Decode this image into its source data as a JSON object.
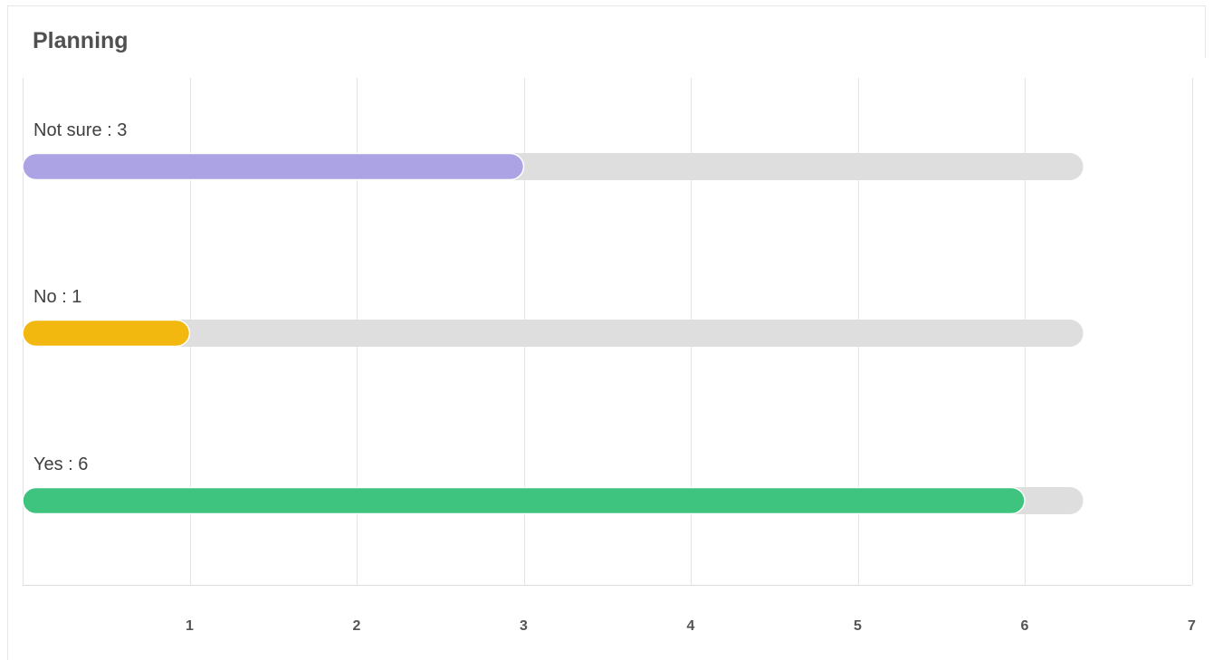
{
  "card": {
    "title": "Planning"
  },
  "chart_data": {
    "type": "bar",
    "orientation": "horizontal",
    "title": "Planning",
    "categories": [
      "Not sure",
      "No",
      "Yes"
    ],
    "values": [
      3,
      1,
      6
    ],
    "labels": [
      "Not sure : 3",
      "No : 1",
      "Yes : 6"
    ],
    "colors": [
      "#aba3e4",
      "#f2b80f",
      "#3ec47f"
    ],
    "track_color": "#dedede",
    "track_max": 6.35,
    "xlim": [
      0,
      7
    ],
    "x_ticks": [
      1,
      2,
      3,
      4,
      5,
      6,
      7
    ],
    "x_tick_labels": [
      "1",
      "2",
      "3",
      "4",
      "5",
      "6",
      "7"
    ],
    "grid": true,
    "xlabel": "",
    "ylabel": ""
  }
}
